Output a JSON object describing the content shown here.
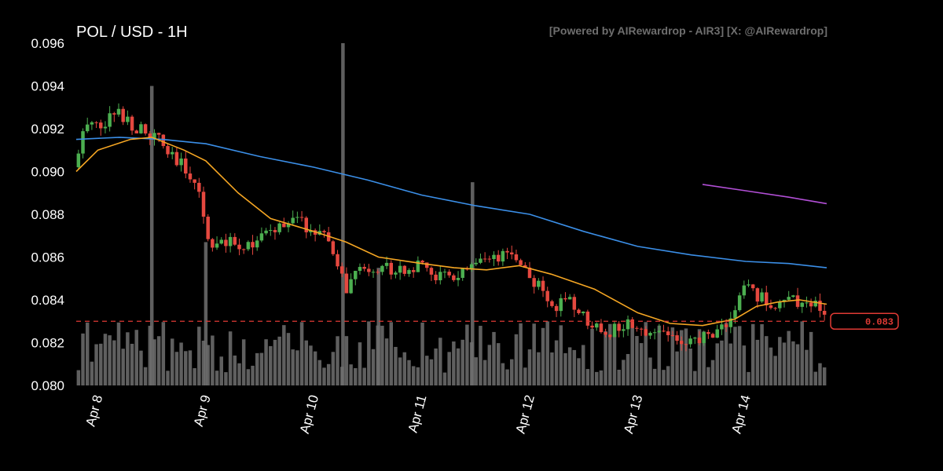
{
  "header": {
    "title": "POL / USD - 1H",
    "watermark": "[Powered by AIRewardrop - AIR3] [X: @AIRewardrop]"
  },
  "chart_data": {
    "type": "candlestick",
    "title": "POL / USD - 1H",
    "pair": "POL / USD",
    "timeframe": "1H",
    "ylim": [
      0.08,
      0.096
    ],
    "y_ticks": [
      "0.080",
      "0.082",
      "0.084",
      "0.086",
      "0.088",
      "0.090",
      "0.092",
      "0.094",
      "0.096"
    ],
    "x_ticks": [
      "Apr 8",
      "Apr 9",
      "Apr 10",
      "Apr 11",
      "Apr 12",
      "Apr 13",
      "Apr 14"
    ],
    "x_range_days": [
      7.8,
      14.75
    ],
    "grid": false,
    "current_price": 0.083,
    "current_price_label": "0.083",
    "colors": {
      "background": "#000000",
      "up_candle": "#4caf50",
      "down_candle": "#e5483f",
      "volume": "#707070",
      "ma_short": "#f5a623",
      "ma_mid": "#3b8fe8",
      "ma_long": "#b24fd6",
      "price_line": "#e03a34"
    },
    "series": [
      {
        "kind": "ma_long",
        "points": [
          [
            13.6,
            0.0894
          ],
          [
            14.0,
            0.0891
          ],
          [
            14.4,
            0.0888
          ],
          [
            14.75,
            0.0885
          ]
        ]
      },
      {
        "kind": "ma_mid",
        "points": [
          [
            7.8,
            0.0915
          ],
          [
            8.2,
            0.0916
          ],
          [
            8.6,
            0.0915
          ],
          [
            9.0,
            0.0913
          ],
          [
            9.5,
            0.0907
          ],
          [
            10.0,
            0.0902
          ],
          [
            10.5,
            0.0896
          ],
          [
            11.0,
            0.0889
          ],
          [
            11.5,
            0.0884
          ],
          [
            12.0,
            0.088
          ],
          [
            12.5,
            0.0872
          ],
          [
            13.0,
            0.0865
          ],
          [
            13.5,
            0.0861
          ],
          [
            14.0,
            0.0858
          ],
          [
            14.4,
            0.0857
          ],
          [
            14.75,
            0.0855
          ]
        ]
      },
      {
        "kind": "ma_short",
        "points": [
          [
            7.8,
            0.09
          ],
          [
            8.0,
            0.091
          ],
          [
            8.3,
            0.0915
          ],
          [
            8.5,
            0.0916
          ],
          [
            8.8,
            0.091
          ],
          [
            9.0,
            0.0905
          ],
          [
            9.3,
            0.089
          ],
          [
            9.6,
            0.0878
          ],
          [
            10.0,
            0.0872
          ],
          [
            10.3,
            0.0867
          ],
          [
            10.6,
            0.086
          ],
          [
            11.0,
            0.0857
          ],
          [
            11.3,
            0.0855
          ],
          [
            11.6,
            0.0854
          ],
          [
            11.9,
            0.0856
          ],
          [
            12.2,
            0.0852
          ],
          [
            12.6,
            0.0845
          ],
          [
            13.0,
            0.0834
          ],
          [
            13.3,
            0.0829
          ],
          [
            13.6,
            0.0828
          ],
          [
            13.9,
            0.0831
          ],
          [
            14.1,
            0.0837
          ],
          [
            14.3,
            0.0839
          ],
          [
            14.5,
            0.084
          ],
          [
            14.75,
            0.0838
          ]
        ]
      }
    ],
    "volume_max": 0.096,
    "volume_spikes": [
      [
        8.5,
        0.094
      ],
      [
        10.27,
        0.096
      ],
      [
        11.47,
        0.0895
      ],
      [
        9.0,
        0.0867
      ],
      [
        10.6,
        0.0855
      ]
    ]
  }
}
